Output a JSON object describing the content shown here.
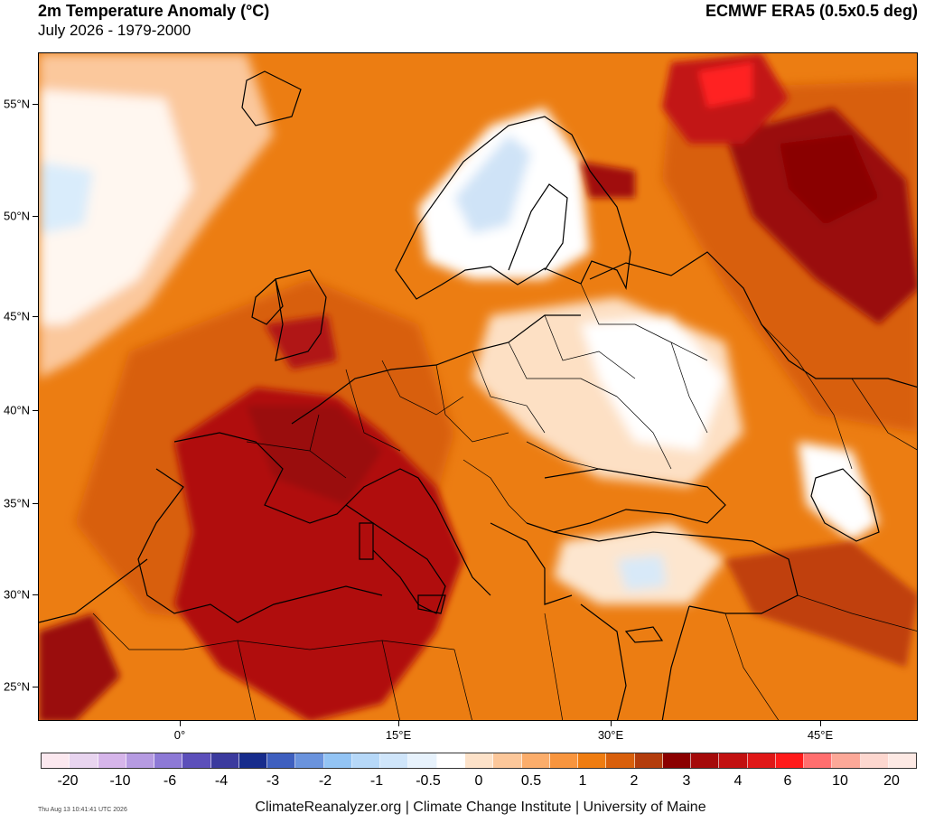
{
  "header": {
    "title": "2m Temperature Anomaly (°C)",
    "subtitle": "July 2026 - 1979-2000",
    "source": "ECMWF ERA5 (0.5x0.5 deg)"
  },
  "map": {
    "lat_labels": [
      "55°N",
      "50°N",
      "45°N",
      "40°N",
      "35°N",
      "30°N",
      "25°N"
    ],
    "lon_labels": [
      "0°",
      "15°E",
      "30°E",
      "45°E"
    ]
  },
  "legend": {
    "colors": [
      "#fbe8ef",
      "#e8d4ef",
      "#d6b5ea",
      "#b69be2",
      "#8d79d6",
      "#5c4fba",
      "#3b3a9e",
      "#172c8c",
      "#3e5fbf",
      "#6a93dd",
      "#93c4f4",
      "#b6d8f8",
      "#cfe5fa",
      "#e7f2fc",
      "#ffffff",
      "#fde2c9",
      "#fcc79a",
      "#fbad6b",
      "#f8953e",
      "#ef7c10",
      "#d85f0b",
      "#b33c0c",
      "#8b0000",
      "#a50a0a",
      "#c21010",
      "#e01717",
      "#ff1a1a",
      "#ff6e6e",
      "#fca898",
      "#fdd7cf",
      "#fde9e4"
    ],
    "labels": [
      "-20",
      "-10",
      "-6",
      "-4",
      "-3",
      "-2",
      "-1",
      "-0.5",
      "0",
      "0.5",
      "1",
      "2",
      "3",
      "4",
      "6",
      "10",
      "20"
    ]
  },
  "footer": {
    "timestamp": "Thu Aug 13 10:41:41 UTC 2026",
    "credit": "ClimateReanalyzer.org | Climate Change Institute | University of Maine"
  }
}
